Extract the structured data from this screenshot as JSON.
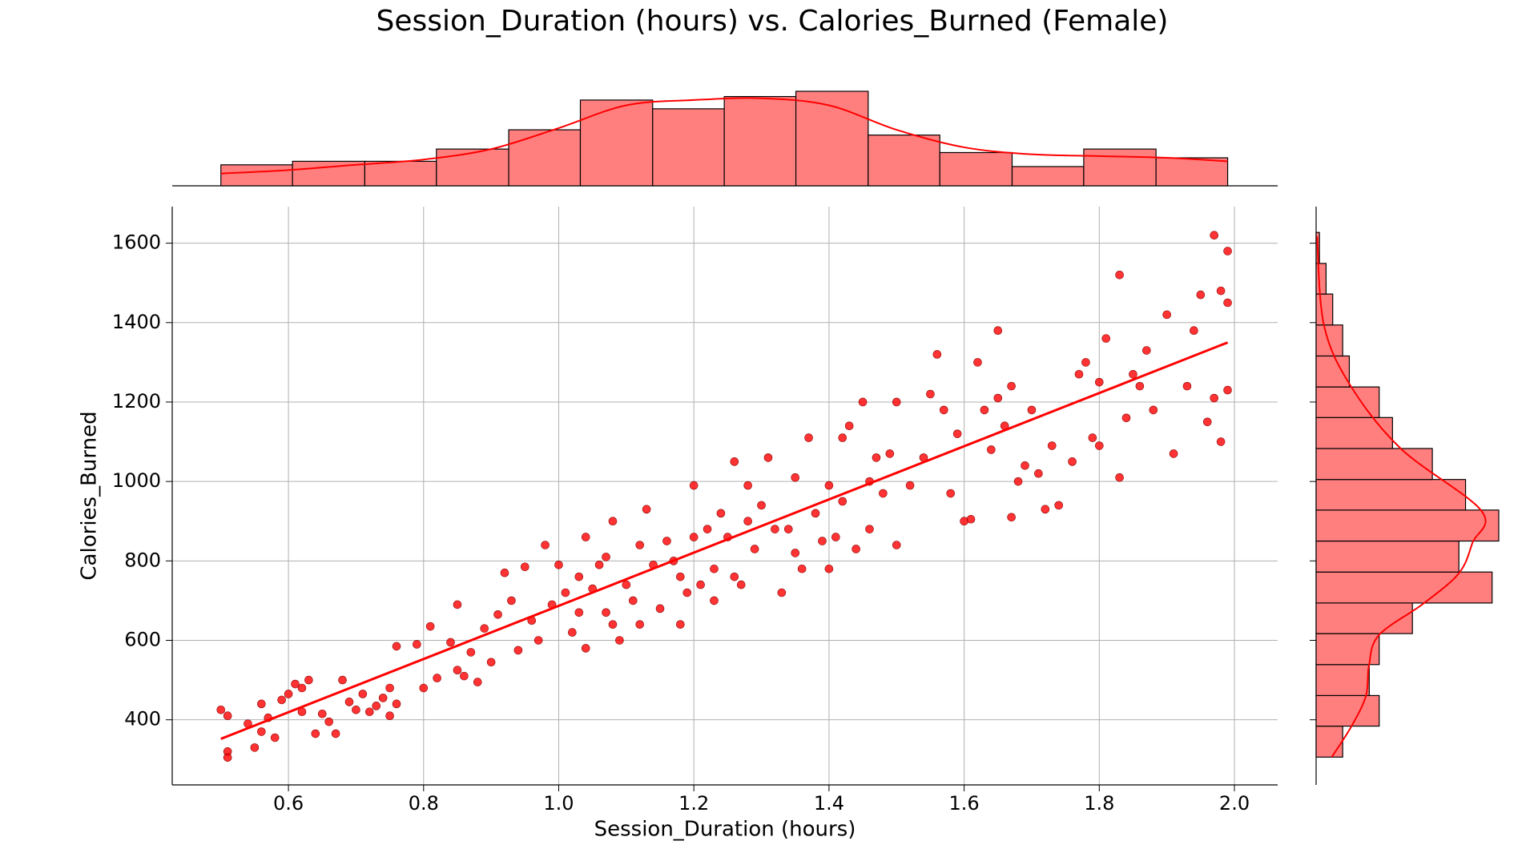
{
  "chart_data": {
    "type": "scatter",
    "title": "Session_Duration (hours) vs. Calories_Burned (Female)",
    "x_label": "Session_Duration (hours)",
    "y_label": "Calories_Burned",
    "xlim": [
      0.428,
      2.064
    ],
    "ylim": [
      236,
      1692
    ],
    "xticks": [
      0.6,
      0.8,
      {
        "value": 1,
        "label": "1.0"
      },
      1.2,
      1.4,
      1.6,
      1.8,
      {
        "value": 2,
        "label": "2.0"
      }
    ],
    "yticks": [
      400,
      600,
      800,
      1000,
      1200,
      1400,
      1600
    ],
    "grid": true,
    "series": [
      {
        "type": "scatter",
        "color": "#ff0000",
        "x": [
          0.5,
          0.51,
          0.51,
          0.51,
          0.54,
          0.55,
          0.56,
          0.57,
          0.56,
          0.58,
          0.59,
          0.6,
          0.61,
          0.62,
          0.62,
          0.63,
          0.64,
          0.65,
          0.66,
          0.67,
          0.68,
          0.69,
          0.7,
          0.71,
          0.72,
          0.73,
          0.74,
          0.75,
          0.75,
          0.76,
          0.76,
          0.79,
          0.8,
          0.81,
          0.82,
          0.84,
          0.85,
          0.85,
          0.86,
          0.87,
          0.88,
          0.89,
          0.9,
          0.91,
          0.92,
          0.93,
          0.94,
          0.95,
          0.96,
          0.97,
          0.98,
          0.99,
          1.0,
          1.01,
          1.02,
          1.03,
          1.03,
          1.04,
          1.04,
          1.05,
          1.06,
          1.07,
          1.07,
          1.08,
          1.08,
          1.09,
          1.1,
          1.11,
          1.12,
          1.12,
          1.13,
          1.14,
          1.15,
          1.16,
          1.17,
          1.18,
          1.18,
          1.19,
          1.2,
          1.2,
          1.21,
          1.22,
          1.23,
          1.23,
          1.24,
          1.25,
          1.26,
          1.26,
          1.27,
          1.28,
          1.28,
          1.29,
          1.3,
          1.31,
          1.32,
          1.33,
          1.34,
          1.35,
          1.35,
          1.36,
          1.37,
          1.38,
          1.39,
          1.4,
          1.4,
          1.41,
          1.42,
          1.42,
          1.43,
          1.44,
          1.45,
          1.46,
          1.46,
          1.47,
          1.48,
          1.49,
          1.5,
          1.5,
          1.52,
          1.54,
          1.55,
          1.56,
          1.57,
          1.58,
          1.59,
          1.6,
          1.61,
          1.62,
          1.63,
          1.64,
          1.65,
          1.65,
          1.66,
          1.67,
          1.67,
          1.68,
          1.69,
          1.7,
          1.71,
          1.72,
          1.73,
          1.74,
          1.76,
          1.77,
          1.78,
          1.79,
          1.8,
          1.8,
          1.81,
          1.83,
          1.83,
          1.84,
          1.85,
          1.86,
          1.87,
          1.88,
          1.9,
          1.91,
          1.93,
          1.94,
          1.95,
          1.96,
          1.97,
          1.97,
          1.98,
          1.98,
          1.99,
          1.99,
          1.99
        ],
        "values": [
          425,
          410,
          320,
          305,
          390,
          330,
          440,
          405,
          370,
          355,
          450,
          465,
          490,
          420,
          480,
          500,
          365,
          415,
          395,
          365,
          500,
          445,
          425,
          465,
          420,
          435,
          455,
          480,
          410,
          585,
          440,
          590,
          480,
          635,
          505,
          595,
          525,
          690,
          510,
          570,
          495,
          630,
          545,
          665,
          770,
          700,
          575,
          785,
          650,
          600,
          840,
          690,
          790,
          720,
          620,
          670,
          760,
          580,
          860,
          730,
          790,
          810,
          670,
          900,
          640,
          600,
          740,
          700,
          640,
          840,
          930,
          790,
          680,
          850,
          800,
          640,
          760,
          720,
          860,
          990,
          740,
          880,
          780,
          700,
          920,
          860,
          760,
          1050,
          740,
          990,
          900,
          830,
          940,
          1060,
          880,
          720,
          880,
          820,
          1010,
          780,
          1110,
          920,
          850,
          990,
          780,
          860,
          950,
          1110,
          1140,
          830,
          1200,
          880,
          1000,
          1060,
          970,
          1070,
          840,
          1200,
          990,
          1060,
          1220,
          1320,
          1180,
          970,
          1120,
          900,
          905,
          1300,
          1180,
          1080,
          1210,
          1380,
          1140,
          910,
          1240,
          1000,
          1040,
          1180,
          1020,
          930,
          1090,
          940,
          1050,
          1270,
          1300,
          1110,
          1090,
          1250,
          1360,
          1520,
          1010,
          1160,
          1270,
          1240,
          1330,
          1180,
          1420,
          1070,
          1240,
          1380,
          1470,
          1150,
          1620,
          1210,
          1480,
          1100,
          1580,
          1450,
          1230
        ]
      },
      {
        "type": "line",
        "color": "#ff0000",
        "x": [
          0.5,
          1.99
        ],
        "values": [
          352,
          1350
        ]
      }
    ],
    "marginal_x": {
      "type": "histogram",
      "color": "#ff7f7f",
      "edge_color": "#000000",
      "bins": [
        0.5,
        0.606,
        0.713,
        0.819,
        0.926,
        1.032,
        1.139,
        1.245,
        1.351,
        1.458,
        1.564,
        1.671,
        1.777,
        1.884,
        1.99
      ],
      "counts": [
        12,
        14,
        14,
        21,
        32,
        49,
        44,
        51,
        54,
        29,
        19,
        11,
        21,
        16
      ],
      "kde": {
        "color": "#ff0000",
        "x": [
          0.5,
          0.6,
          0.7,
          0.8,
          0.9,
          1.0,
          1.1,
          1.2,
          1.3,
          1.4,
          1.5,
          1.6,
          1.7,
          1.8,
          1.9,
          1.99
        ],
        "values": [
          7,
          9,
          12,
          15,
          21,
          33,
          46,
          49,
          50,
          46,
          32,
          22,
          18,
          17,
          16,
          14
        ]
      }
    },
    "marginal_y": {
      "type": "histogram",
      "color": "#ff7f7f",
      "edge_color": "#000000",
      "bins": [
        306,
        384,
        461,
        539,
        617,
        694,
        772,
        850,
        928,
        1005,
        1083,
        1161,
        1238,
        1316,
        1394,
        1472,
        1549,
        1627
      ],
      "counts": [
        8,
        19,
        16,
        19,
        29,
        53,
        43,
        55,
        45,
        35,
        23,
        19,
        10,
        8,
        5,
        3,
        1
      ],
      "kde": {
        "color": "#ff0000",
        "x": [
          306,
          383,
          460,
          536,
          613,
          693,
          769,
          846,
          926,
          1082,
          1238,
          1392,
          1617
        ],
        "values": [
          4.7,
          10.6,
          15,
          15.9,
          18.9,
          32.4,
          43,
          47.1,
          49.8,
          25.6,
          10.6,
          2.4,
          0.3
        ]
      }
    }
  }
}
